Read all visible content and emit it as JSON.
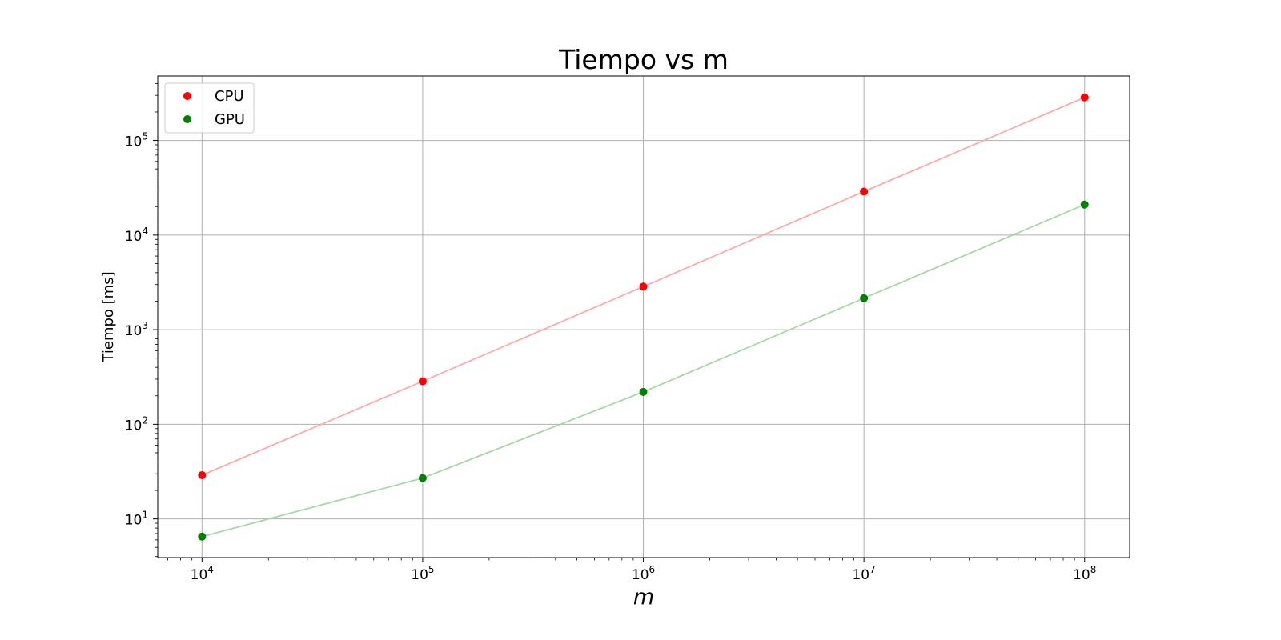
{
  "chart_data": {
    "type": "line",
    "title": "Tiempo vs m",
    "xlabel": "m",
    "ylabel": "Tiempo [ms]",
    "xscale": "log",
    "yscale": "log",
    "xlim": [
      6300,
      160000000
    ],
    "ylim": [
      3.9,
      480000
    ],
    "grid": true,
    "legend_position": "top-left",
    "x_ticks": [
      {
        "value": 10000,
        "base": "10",
        "exp": "4"
      },
      {
        "value": 100000,
        "base": "10",
        "exp": "5"
      },
      {
        "value": 1000000,
        "base": "10",
        "exp": "6"
      },
      {
        "value": 10000000,
        "base": "10",
        "exp": "7"
      },
      {
        "value": 100000000,
        "base": "10",
        "exp": "8"
      }
    ],
    "y_ticks": [
      {
        "value": 10,
        "base": "10",
        "exp": "1"
      },
      {
        "value": 100,
        "base": "10",
        "exp": "2"
      },
      {
        "value": 1000,
        "base": "10",
        "exp": "3"
      },
      {
        "value": 10000,
        "base": "10",
        "exp": "4"
      },
      {
        "value": 100000,
        "base": "10",
        "exp": "5"
      }
    ],
    "x": [
      10000,
      100000,
      1000000,
      10000000,
      100000000
    ],
    "series": [
      {
        "name": "CPU",
        "marker_color": "#ff0000",
        "line_color": "#ffaaaa",
        "values": [
          29,
          285,
          2850,
          28800,
          285000
        ]
      },
      {
        "name": "GPU",
        "marker_color": "#008000",
        "line_color": "#a6d8a6",
        "values": [
          6.5,
          27,
          220,
          2150,
          21000
        ]
      }
    ]
  }
}
